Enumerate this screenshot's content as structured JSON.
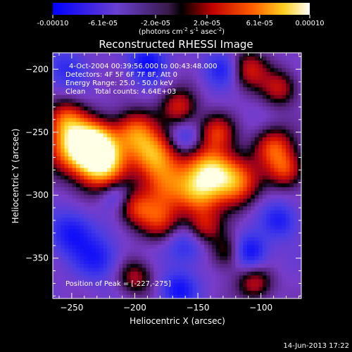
{
  "chart_data": {
    "type": "heatmap",
    "title": "Reconstructed RHESSI Image",
    "xlabel": "Heliocentric X (arcsec)",
    "ylabel": "Heliocentric Y (arcsec)",
    "xlim": [
      -265,
      -68
    ],
    "ylim": [
      -382,
      -187
    ],
    "xticks": [
      -250,
      -200,
      -150,
      -100
    ],
    "yticks": [
      -200,
      -250,
      -300,
      -350
    ],
    "colorbar": {
      "range": [
        -0.0001,
        0.0001
      ],
      "ticks": [
        "-0.00010",
        "-6.1e-05",
        "-2.0e-05",
        "2.0e-05",
        "6.1e-05",
        "0.00010"
      ],
      "tick_values": [
        -0.0001,
        -6.1e-05,
        -2e-05,
        2e-05,
        6.1e-05,
        0.0001
      ],
      "unit_label_parts": [
        "(photons cm",
        "-2",
        " s",
        "-1",
        " asec",
        "-2",
        ")"
      ]
    },
    "annotations": [
      "4-Oct-2004 00:39:56.000 to 00:43:48.000",
      "Detectors: 4F 5F 6F 7F 8F, Att 0",
      "Energy Range: 25.0 - 50.0 keV",
      "Clean    Total counts: 4.64E+03"
    ],
    "peak_label": "Position of Peak = [-227,-275]",
    "peak": [
      -227,
      -275
    ],
    "sources": [
      {
        "x": -227,
        "y": -275,
        "amp": 1.0,
        "w": 14
      },
      {
        "x": -232,
        "y": -258,
        "amp": 0.8,
        "w": 12
      },
      {
        "x": -250,
        "y": -262,
        "amp": 0.75,
        "w": 14
      },
      {
        "x": -200,
        "y": -250,
        "amp": 0.65,
        "w": 12
      },
      {
        "x": -185,
        "y": -268,
        "amp": 0.7,
        "w": 12
      },
      {
        "x": -175,
        "y": -290,
        "amp": 0.6,
        "w": 14
      },
      {
        "x": -140,
        "y": -280,
        "amp": 0.85,
        "w": 13
      },
      {
        "x": -120,
        "y": -290,
        "amp": 0.7,
        "w": 13
      },
      {
        "x": -150,
        "y": -300,
        "amp": 0.6,
        "w": 12
      },
      {
        "x": -90,
        "y": -262,
        "amp": 0.6,
        "w": 11
      },
      {
        "x": -80,
        "y": -280,
        "amp": 0.55,
        "w": 10
      },
      {
        "x": -255,
        "y": -240,
        "amp": 0.55,
        "w": 11
      },
      {
        "x": -165,
        "y": -230,
        "amp": 0.5,
        "w": 10
      },
      {
        "x": -135,
        "y": -250,
        "amp": 0.5,
        "w": 10
      },
      {
        "x": -110,
        "y": -200,
        "amp": 0.5,
        "w": 11
      },
      {
        "x": -85,
        "y": -215,
        "amp": 0.45,
        "w": 10
      },
      {
        "x": -200,
        "y": -310,
        "amp": 0.45,
        "w": 10
      },
      {
        "x": -180,
        "y": -320,
        "amp": 0.5,
        "w": 12
      },
      {
        "x": -145,
        "y": -325,
        "amp": 0.45,
        "w": 10
      },
      {
        "x": -125,
        "y": -345,
        "amp": 0.45,
        "w": 10
      },
      {
        "x": -200,
        "y": -365,
        "amp": 0.4,
        "w": 10
      },
      {
        "x": -105,
        "y": -370,
        "amp": 0.45,
        "w": 10
      },
      {
        "x": -250,
        "y": -330,
        "amp": -0.45,
        "w": 12
      },
      {
        "x": -230,
        "y": -350,
        "amp": -0.4,
        "w": 12
      },
      {
        "x": -110,
        "y": -345,
        "amp": -0.6,
        "w": 10
      },
      {
        "x": -190,
        "y": -195,
        "amp": -0.5,
        "w": 10
      },
      {
        "x": -130,
        "y": -200,
        "amp": -0.4,
        "w": 10
      },
      {
        "x": -165,
        "y": -375,
        "amp": -0.45,
        "w": 10
      },
      {
        "x": -85,
        "y": -320,
        "amp": -0.4,
        "w": 10
      },
      {
        "x": -160,
        "y": -340,
        "amp": -0.35,
        "w": 11
      },
      {
        "x": -255,
        "y": -200,
        "amp": -0.3,
        "w": 11
      },
      {
        "x": -215,
        "y": -300,
        "amp": -0.25,
        "w": 8
      },
      {
        "x": -160,
        "y": -255,
        "amp": -0.25,
        "w": 8
      }
    ]
  },
  "footer": {
    "timestamp": "14-Jun-2013 17:22"
  }
}
